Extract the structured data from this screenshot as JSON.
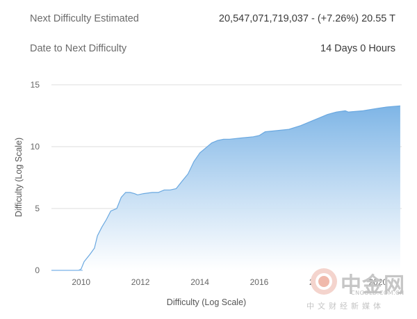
{
  "stats": {
    "next_difficulty_label": "Next Difficulty Estimated",
    "next_difficulty_value": "20,547,071,719,037 - (+7.26%) 20.55 T",
    "date_label": "Date to Next Difficulty",
    "date_value": "14 Days 0 Hours"
  },
  "chart_data": {
    "type": "area",
    "xlabel": "Difficulty (Log Scale)",
    "ylabel": "Difficulty (Log Scale)",
    "xlim": [
      2009,
      2020.8
    ],
    "ylim": [
      0,
      15
    ],
    "x_ticks": [
      2010,
      2012,
      2014,
      2016,
      2018,
      2020
    ],
    "y_ticks": [
      0,
      5,
      10,
      15
    ],
    "grid": "horizontal",
    "fill_color_top": "#7eb5e6",
    "fill_color_bottom": "#ffffff",
    "series": [
      {
        "x": [
          2009.0,
          2009.9,
          2010.0,
          2010.1,
          2010.3,
          2010.45,
          2010.55,
          2010.7,
          2010.85,
          2011.0,
          2011.2,
          2011.35,
          2011.5,
          2011.65,
          2011.8,
          2011.9,
          2012.1,
          2012.4,
          2012.6,
          2012.8,
          2013.0,
          2013.2,
          2013.4,
          2013.6,
          2013.8,
          2014.0,
          2014.2,
          2014.4,
          2014.6,
          2014.8,
          2015.0,
          2015.4,
          2015.8,
          2016.0,
          2016.2,
          2016.6,
          2017.0,
          2017.4,
          2017.8,
          2018.0,
          2018.3,
          2018.6,
          2018.9,
          2019.0,
          2019.5,
          2020.0,
          2020.3,
          2020.75
        ],
        "values": [
          0.0,
          0.0,
          0.1,
          0.7,
          1.3,
          1.8,
          2.8,
          3.5,
          4.1,
          4.8,
          5.0,
          5.9,
          6.3,
          6.3,
          6.2,
          6.1,
          6.2,
          6.3,
          6.3,
          6.5,
          6.5,
          6.6,
          7.2,
          7.8,
          8.8,
          9.5,
          9.9,
          10.3,
          10.5,
          10.6,
          10.6,
          10.7,
          10.8,
          10.9,
          11.2,
          11.3,
          11.4,
          11.7,
          12.1,
          12.3,
          12.6,
          12.8,
          12.9,
          12.8,
          12.9,
          13.1,
          13.2,
          13.3
        ]
      }
    ]
  },
  "watermark": {
    "name_cn": "中金网",
    "url": "CNGOLD.COM.CN",
    "subtitle_cn": "中文财经新媒体"
  }
}
